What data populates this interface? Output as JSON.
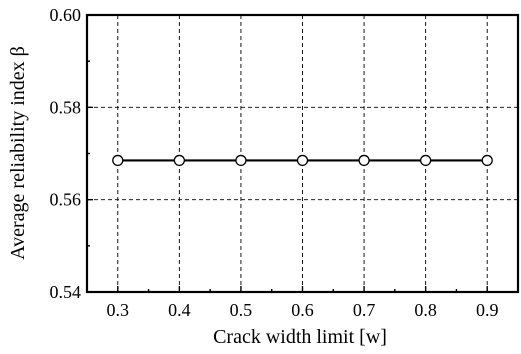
{
  "chart_data": {
    "type": "line",
    "xlabel": "Crack width limit [w]",
    "ylabel": "Average reliability  index  β",
    "x": [
      0.3,
      0.4,
      0.5,
      0.6,
      0.7,
      0.8,
      0.9
    ],
    "xlim": [
      0.25,
      0.95
    ],
    "ylim": [
      0.54,
      0.6
    ],
    "xticks": [
      0.3,
      0.4,
      0.5,
      0.6,
      0.7,
      0.8,
      0.9
    ],
    "yticks": [
      0.54,
      0.56,
      0.58,
      0.6
    ],
    "xtick_labels": [
      "0.3",
      "0.4",
      "0.5",
      "0.6",
      "0.7",
      "0.8",
      "0.9"
    ],
    "ytick_labels": [
      "0.54",
      "0.56",
      "0.58",
      "0.60"
    ],
    "grid": true,
    "series": [
      {
        "values": [
          0.5685,
          0.5685,
          0.5685,
          0.5685,
          0.5685,
          0.5685,
          0.5685
        ]
      }
    ]
  }
}
